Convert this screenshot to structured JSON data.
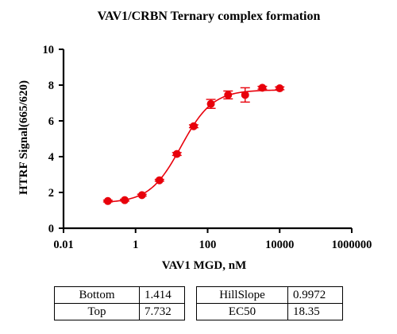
{
  "chart_data": {
    "type": "scatter",
    "title": "VAV1/CRBN Ternary complex formation",
    "xlabel": "VAV1 MGD, nM",
    "ylabel": "HTRF Signal(665/620)",
    "x_scale": "log",
    "xlim": [
      0.01,
      1000000
    ],
    "ylim": [
      0,
      10
    ],
    "x_ticks": [
      {
        "value": 0.01,
        "label": "0.01"
      },
      {
        "value": 1,
        "label": "1"
      },
      {
        "value": 100,
        "label": "100"
      },
      {
        "value": 10000,
        "label": "10000"
      },
      {
        "value": 1000000,
        "label": "1000000"
      }
    ],
    "y_ticks": [
      {
        "value": 0,
        "label": "0"
      },
      {
        "value": 2,
        "label": "2"
      },
      {
        "value": 4,
        "label": "4"
      },
      {
        "value": 6,
        "label": "6"
      },
      {
        "value": 8,
        "label": "8"
      },
      {
        "value": 10,
        "label": "10"
      }
    ],
    "color": "#e8000b",
    "points": [
      {
        "x": 0.17,
        "y": 1.52,
        "err": 0.05
      },
      {
        "x": 0.5,
        "y": 1.57,
        "err": 0.05
      },
      {
        "x": 1.5,
        "y": 1.85,
        "err": 0.05
      },
      {
        "x": 4.6,
        "y": 2.68,
        "err": 0.05
      },
      {
        "x": 14,
        "y": 4.15,
        "err": 0.08
      },
      {
        "x": 41,
        "y": 5.7,
        "err": 0.08
      },
      {
        "x": 123,
        "y": 6.95,
        "err": 0.25
      },
      {
        "x": 370,
        "y": 7.45,
        "err": 0.22
      },
      {
        "x": 1100,
        "y": 7.45,
        "err": 0.4
      },
      {
        "x": 3300,
        "y": 7.85,
        "err": 0.08
      },
      {
        "x": 10000,
        "y": 7.82,
        "err": 0.08
      }
    ],
    "fit": {
      "model": "4PL",
      "bottom": 1.414,
      "top": 7.732,
      "hillslope": 0.9972,
      "ec50": 18.35
    }
  },
  "params_table": {
    "left": [
      {
        "label": "Bottom",
        "value": "1.414"
      },
      {
        "label": "Top",
        "value": "7.732"
      }
    ],
    "right": [
      {
        "label": "HillSlope",
        "value": "0.9972"
      },
      {
        "label": "EC50",
        "value": "18.35"
      }
    ]
  }
}
